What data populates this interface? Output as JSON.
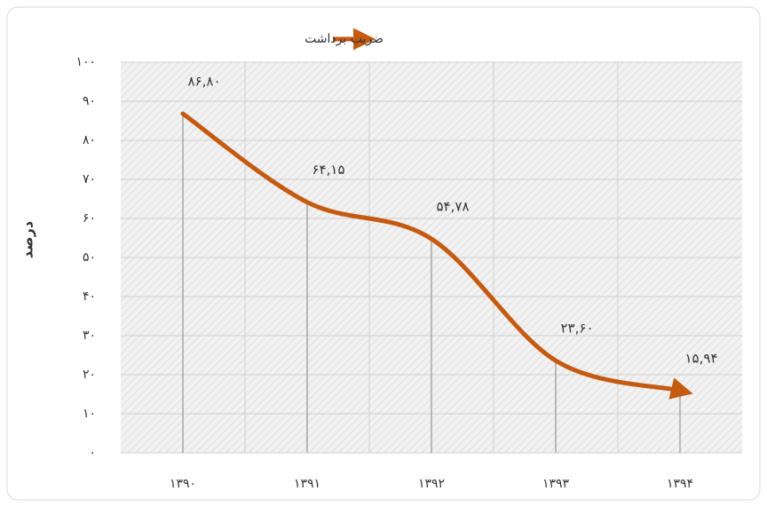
{
  "chart_data": {
    "type": "line",
    "legend_position": "top",
    "y_label": "درصد",
    "categories": [
      "۱۳۹۰",
      "۱۳۹۱",
      "۱۳۹۲",
      "۱۳۹۳",
      "۱۳۹۴"
    ],
    "series": [
      {
        "name": "ضریب برداشت",
        "color": "#c55a11",
        "values": [
          86.8,
          64.15,
          54.78,
          23.6,
          15.94
        ],
        "value_labels": [
          "۸۶,۸۰",
          "۶۴,۱۵",
          "۵۴,۷۸",
          "۲۳,۶۰",
          "۱۵,۹۴"
        ]
      }
    ],
    "ylim": [
      0,
      100
    ],
    "yticks": [
      {
        "value": 0,
        "label": "۰"
      },
      {
        "value": 10,
        "label": "۱۰"
      },
      {
        "value": 20,
        "label": "۲۰"
      },
      {
        "value": 30,
        "label": "۳۰"
      },
      {
        "value": 40,
        "label": "۴۰"
      },
      {
        "value": 50,
        "label": "۵۰"
      },
      {
        "value": 60,
        "label": "۶۰"
      },
      {
        "value": 70,
        "label": "۷۰"
      },
      {
        "value": 80,
        "label": "۸۰"
      },
      {
        "value": 90,
        "label": "۹۰"
      },
      {
        "value": 100,
        "label": "۱۰۰"
      }
    ],
    "grid": true,
    "smooth": true
  }
}
